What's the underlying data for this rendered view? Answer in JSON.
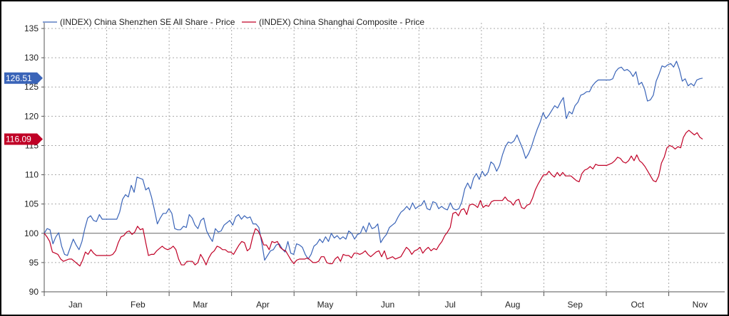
{
  "chart_data": {
    "type": "line",
    "xlabel": "",
    "ylabel": "",
    "ylim": [
      90,
      135
    ],
    "yticks": [
      90,
      95,
      100,
      105,
      110,
      115,
      120,
      125,
      130,
      135
    ],
    "month_labels": [
      "Jan",
      "Feb",
      "Mar",
      "Apr",
      "May",
      "Jun",
      "Jul",
      "Aug",
      "Sep",
      "Oct",
      "Nov"
    ],
    "reference_line": 100,
    "grid": true,
    "legend_position": "top-left",
    "series": [
      {
        "name": "(INDEX) China Shenzhen SE All Share - Price",
        "color": "#3a64b8",
        "last_value_label": "126.51",
        "values": [
          100.0,
          100.8,
          100.6,
          98.2,
          99.4,
          100.1,
          97.8,
          96.4,
          96.2,
          97.6,
          99.0,
          98.0,
          97.2,
          98.6,
          100.8,
          102.6,
          103.0,
          102.2,
          102.0,
          103.2,
          102.4,
          102.4,
          102.4,
          102.4,
          102.4,
          102.4,
          103.6,
          105.8,
          106.6,
          106.2,
          108.2,
          107.0,
          109.6,
          109.4,
          109.2,
          107.4,
          107.8,
          106.2,
          104.0,
          101.6,
          102.6,
          103.4,
          103.4,
          104.2,
          103.4,
          100.8,
          100.6,
          100.6,
          101.2,
          101.0,
          103.2,
          102.6,
          101.4,
          100.8,
          102.2,
          102.6,
          100.4,
          99.4,
          98.6,
          100.8,
          100.2,
          100.4,
          101.4,
          101.8,
          102.2,
          101.4,
          102.8,
          103.2,
          102.4,
          103.0,
          102.6,
          102.8,
          101.6,
          101.6,
          101.0,
          98.4,
          95.4,
          96.2,
          97.0,
          97.2,
          98.0,
          98.2,
          97.4,
          96.8,
          98.6,
          96.6,
          96.4,
          98.2,
          98.0,
          97.6,
          96.4,
          95.6,
          96.4,
          97.8,
          98.2,
          99.0,
          98.4,
          99.4,
          98.6,
          100.0,
          99.2,
          99.6,
          99.0,
          99.4,
          99.0,
          100.4,
          100.0,
          99.0,
          99.8,
          100.0,
          101.2,
          100.2,
          101.8,
          100.8,
          101.0,
          101.6,
          98.4,
          99.2,
          99.8,
          101.0,
          101.4,
          101.8,
          102.8,
          103.6,
          104.0,
          104.6,
          104.0,
          105.2,
          104.2,
          104.6,
          104.8,
          105.6,
          104.2,
          104.0,
          105.4,
          105.2,
          104.2,
          104.6,
          104.2,
          104.0,
          105.2,
          104.2,
          104.0,
          104.2,
          105.4,
          107.6,
          108.6,
          107.6,
          109.4,
          110.2,
          109.2,
          110.6,
          109.8,
          110.4,
          112.2,
          111.8,
          110.6,
          111.6,
          113.4,
          114.8,
          115.6,
          115.4,
          115.8,
          116.8,
          115.6,
          114.4,
          112.8,
          113.6,
          114.8,
          116.4,
          117.8,
          119.0,
          120.6,
          119.6,
          120.2,
          121.0,
          121.8,
          121.4,
          122.4,
          123.2,
          119.6,
          120.8,
          120.4,
          121.8,
          122.4,
          123.6,
          123.8,
          124.2,
          124.2,
          125.2,
          125.8,
          126.2,
          126.2,
          126.2,
          126.2,
          126.2,
          126.4,
          127.6,
          128.2,
          128.4,
          127.8,
          128.0,
          127.6,
          126.8,
          127.6,
          125.4,
          125.8,
          124.6,
          122.6,
          122.8,
          123.6,
          126.0,
          127.2,
          128.6,
          128.4,
          128.8,
          129.0,
          128.4,
          129.4,
          128.0,
          126.0,
          126.4,
          125.2,
          125.6,
          125.2,
          126.2,
          126.4,
          126.51
        ]
      },
      {
        "name": "(INDEX) China Shanghai Composite - Price",
        "color": "#c00026",
        "last_value_label": "116.09",
        "values": [
          100.0,
          99.4,
          98.6,
          96.8,
          96.6,
          96.4,
          95.6,
          95.2,
          95.4,
          95.6,
          95.6,
          95.2,
          94.8,
          94.4,
          95.4,
          96.8,
          96.4,
          97.2,
          96.6,
          96.2,
          96.2,
          96.2,
          96.2,
          96.2,
          96.2,
          96.4,
          97.0,
          98.4,
          99.4,
          99.6,
          100.2,
          100.4,
          99.8,
          100.2,
          101.2,
          100.6,
          100.8,
          98.4,
          96.2,
          96.4,
          96.4,
          97.0,
          97.4,
          97.8,
          97.4,
          97.2,
          97.4,
          97.8,
          97.2,
          95.6,
          94.6,
          94.6,
          95.2,
          95.2,
          95.2,
          94.6,
          95.0,
          96.4,
          95.6,
          94.6,
          95.8,
          96.6,
          97.0,
          97.8,
          97.6,
          97.2,
          97.2,
          96.8,
          96.8,
          96.4,
          97.2,
          98.0,
          98.6,
          98.4,
          97.0,
          97.4,
          99.4,
          100.8,
          100.4,
          99.4,
          98.0,
          98.0,
          97.2,
          98.6,
          98.4,
          98.6,
          97.6,
          97.2,
          97.0,
          96.2,
          95.4,
          94.8,
          95.4,
          95.6,
          95.6,
          95.6,
          95.8,
          95.4,
          95.0,
          95.0,
          95.2,
          96.0,
          96.0,
          95.0,
          94.8,
          94.8,
          95.6,
          96.0,
          95.2,
          96.4,
          96.2,
          96.2,
          95.8,
          96.6,
          96.6,
          96.4,
          96.6,
          97.0,
          96.4,
          96.0,
          96.4,
          96.8,
          97.0,
          96.0,
          97.0,
          95.6,
          95.8,
          96.0,
          95.6,
          95.8,
          96.0,
          96.8,
          97.6,
          97.2,
          96.4,
          97.0,
          97.2,
          97.6,
          96.6,
          97.2,
          97.6,
          97.0,
          97.4,
          97.2,
          98.0,
          98.6,
          99.6,
          100.2,
          101.0,
          103.4,
          103.6,
          103.0,
          104.0,
          104.2,
          103.2,
          104.8,
          105.0,
          104.8,
          104.4,
          105.6,
          104.4,
          104.8,
          104.6,
          105.4,
          105.6,
          105.6,
          105.6,
          105.6,
          106.2,
          105.6,
          105.4,
          104.8,
          105.6,
          105.8,
          104.4,
          104.2,
          104.8,
          105.0,
          106.0,
          107.4,
          108.4,
          109.2,
          110.0,
          110.0,
          110.6,
          110.0,
          109.6,
          110.4,
          109.8,
          110.4,
          109.8,
          109.8,
          109.8,
          109.4,
          109.0,
          108.8,
          110.2,
          110.8,
          111.0,
          111.4,
          111.0,
          111.8,
          111.6,
          111.6,
          111.6,
          111.6,
          111.8,
          112.0,
          112.4,
          113.0,
          112.8,
          112.2,
          112.0,
          112.4,
          113.2,
          112.4,
          113.4,
          112.4,
          112.0,
          111.4,
          110.6,
          109.8,
          109.0,
          108.8,
          109.8,
          112.0,
          113.0,
          114.6,
          115.0,
          114.8,
          114.4,
          114.8,
          114.6,
          116.4,
          117.2,
          117.6,
          117.2,
          116.8,
          117.2,
          116.4,
          116.09
        ]
      }
    ]
  }
}
